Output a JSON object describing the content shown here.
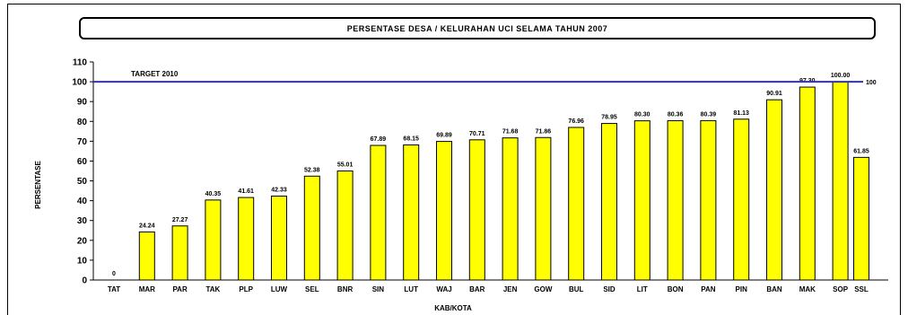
{
  "chart_data": {
    "type": "bar",
    "title": "PERSENTASE DESA / KELURAHAN UCI SELAMA TAHUN 2007",
    "xlabel": "KAB/KOTA",
    "ylabel": "PERSENTASE",
    "ylim": [
      0,
      110
    ],
    "yticks": [
      "0",
      "10",
      "20",
      "30",
      "40",
      "50",
      "60",
      "70",
      "80",
      "90",
      "100",
      "110"
    ],
    "grid": false,
    "bar_color": "#ffff00",
    "target_color": "#3333aa",
    "target": {
      "label": "TARGET 2010",
      "value": 100,
      "value_label": "100"
    },
    "bars": [
      {
        "category": "TAT",
        "value": 0,
        "label": "0"
      },
      {
        "category": "MAR",
        "value": 24.24,
        "label": "24.24"
      },
      {
        "category": "PAR",
        "value": 27.27,
        "label": "27.27"
      },
      {
        "category": "TAK",
        "value": 40.35,
        "label": "40.35"
      },
      {
        "category": "PLP",
        "value": 41.61,
        "label": "41.61"
      },
      {
        "category": "LUW",
        "value": 42.33,
        "label": "42.33"
      },
      {
        "category": "SEL",
        "value": 52.38,
        "label": "52.38"
      },
      {
        "category": "BNR",
        "value": 55.01,
        "label": "55.01"
      },
      {
        "category": "SIN",
        "value": 67.89,
        "label": "67.89"
      },
      {
        "category": "LUT",
        "value": 68.15,
        "label": "68.15"
      },
      {
        "category": "WAJ",
        "value": 69.89,
        "label": "69.89"
      },
      {
        "category": "BAR",
        "value": 70.71,
        "label": "70.71"
      },
      {
        "category": "JEN",
        "value": 71.68,
        "label": "71.68"
      },
      {
        "category": "GOW",
        "value": 71.86,
        "label": "71.86"
      },
      {
        "category": "BUL",
        "value": 76.96,
        "label": "76.96"
      },
      {
        "category": "SID",
        "value": 78.95,
        "label": "78.95"
      },
      {
        "category": "LIT",
        "value": 80.3,
        "label": "80.30"
      },
      {
        "category": "BON",
        "value": 80.36,
        "label": "80.36"
      },
      {
        "category": "PAN",
        "value": 80.39,
        "label": "80.39"
      },
      {
        "category": "PIN",
        "value": 81.13,
        "label": "81.13"
      },
      {
        "category": "BAN",
        "value": 90.91,
        "label": "90.91"
      },
      {
        "category": "MAK",
        "value": 97.3,
        "label": "97.30"
      },
      {
        "category": "SOP",
        "value": 100.0,
        "label": "100.00"
      },
      {
        "category": "SSL",
        "value": 61.85,
        "label": "61.85",
        "detached": true
      }
    ]
  }
}
